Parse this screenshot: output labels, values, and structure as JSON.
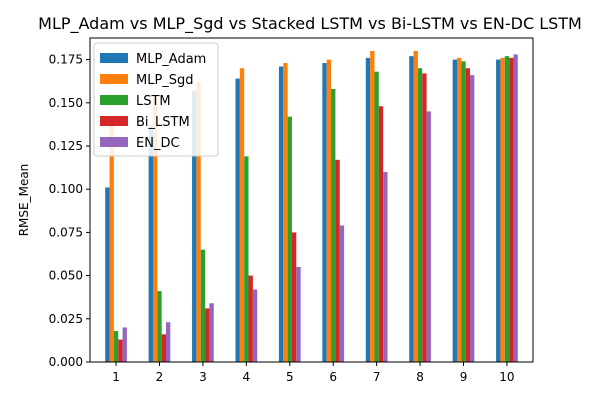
{
  "chart_data": {
    "type": "bar",
    "title": "MLP_Adam vs MLP_Sgd vs Stacked LSTM vs Bi-LSTM vs EN-DC LSTM",
    "xlabel": "",
    "ylabel": "RMSE_Mean",
    "categories": [
      "1",
      "2",
      "3",
      "4",
      "5",
      "6",
      "7",
      "8",
      "9",
      "10"
    ],
    "ylim": [
      0,
      0.1875
    ],
    "yticks": [
      "0.000",
      "0.025",
      "0.050",
      "0.075",
      "0.100",
      "0.125",
      "0.150",
      "0.175"
    ],
    "grid": false,
    "legend_position": "top-left",
    "series": [
      {
        "name": "MLP_Adam",
        "color": "#1f77b4",
        "values": [
          0.101,
          0.137,
          0.157,
          0.164,
          0.171,
          0.173,
          0.176,
          0.177,
          0.175,
          0.175
        ]
      },
      {
        "name": "MLP_Sgd",
        "color": "#ff7f0e",
        "values": [
          0.141,
          0.153,
          0.162,
          0.17,
          0.173,
          0.175,
          0.18,
          0.18,
          0.176,
          0.176
        ]
      },
      {
        "name": "LSTM",
        "color": "#2ca02c",
        "values": [
          0.018,
          0.041,
          0.065,
          0.119,
          0.142,
          0.158,
          0.168,
          0.17,
          0.174,
          0.177
        ]
      },
      {
        "name": "Bi_LSTM",
        "color": "#d62728",
        "values": [
          0.013,
          0.016,
          0.031,
          0.05,
          0.075,
          0.117,
          0.148,
          0.167,
          0.17,
          0.176
        ]
      },
      {
        "name": "EN_DC",
        "color": "#9467bd",
        "values": [
          0.02,
          0.023,
          0.034,
          0.042,
          0.055,
          0.079,
          0.11,
          0.145,
          0.166,
          0.178
        ]
      }
    ]
  }
}
